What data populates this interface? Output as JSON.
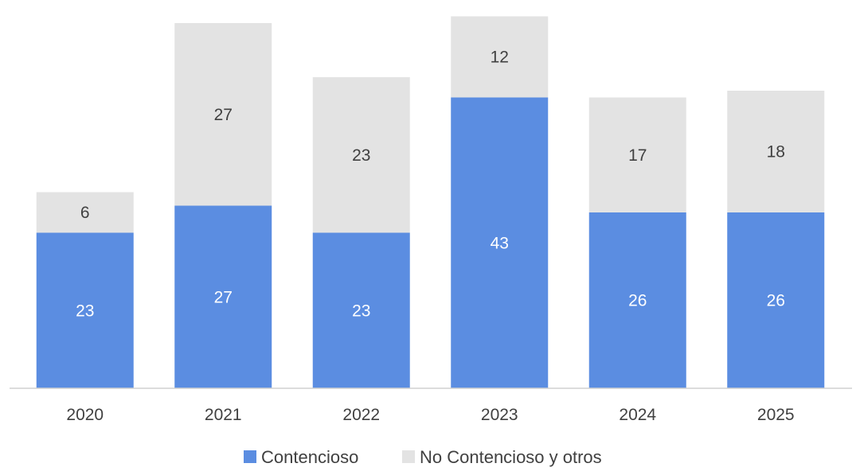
{
  "chart_data": {
    "type": "bar",
    "stacked": true,
    "categories": [
      "2020",
      "2021",
      "2022",
      "2023",
      "2024",
      "2025"
    ],
    "series": [
      {
        "name": "Contencioso",
        "values": [
          23,
          27,
          23,
          43,
          26,
          26
        ],
        "color": "#5B8DE1",
        "label_color": "#ffffff"
      },
      {
        "name": "No Contencioso y otros",
        "values": [
          6,
          27,
          23,
          12,
          17,
          18
        ],
        "color": "#E3E3E3",
        "label_color": "#404040"
      }
    ],
    "ylim": [
      0,
      55
    ],
    "grid": false,
    "legend": "bottom-center",
    "axis_line_color": "#D0D0D0"
  }
}
